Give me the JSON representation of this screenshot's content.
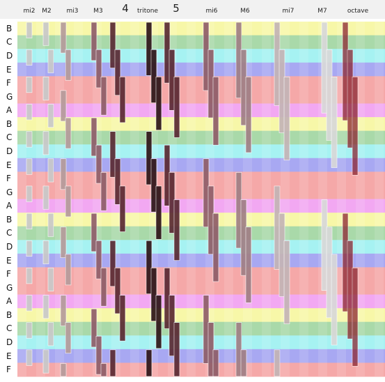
{
  "interval_headers": [
    {
      "label": "mi2",
      "size": "small"
    },
    {
      "label": "M2",
      "size": "small"
    },
    {
      "label": "mi3",
      "size": "small"
    },
    {
      "label": "M3",
      "size": "small"
    },
    {
      "label": "4",
      "size": "big"
    },
    {
      "label": "tritone",
      "size": "small"
    },
    {
      "label": "5",
      "size": "big"
    },
    {
      "label": "mi6",
      "size": "small"
    },
    {
      "label": "M6",
      "size": "small"
    },
    {
      "label": "mi7",
      "size": "small"
    },
    {
      "label": "M7",
      "size": "small"
    },
    {
      "label": "octave",
      "size": "small"
    }
  ],
  "note_labels": [
    "B",
    "C",
    "D",
    "E",
    "F",
    "G",
    "A",
    "B",
    "C",
    "D",
    "E",
    "F",
    "G",
    "A",
    "B",
    "C",
    "D",
    "E",
    "F",
    "G",
    "A",
    "B",
    "C",
    "D",
    "E",
    "F"
  ],
  "note_colors": {
    "B": "#f7f7a8",
    "C": "#a9d9a9",
    "D": "#a6f2f2",
    "E": "#a8a8f2",
    "F": "#f5a8a8",
    "G": "#f5a8a8",
    "A": "#f2a8f2"
  },
  "interval_bar_colors": [
    "#c9c9c9",
    "#c9c9c9",
    "#b59b9b",
    "#8f5e69",
    "#5a2a33",
    "#2e1518",
    "#5a2a33",
    "#8f5e69",
    "#a07f85",
    "#c4b4b6",
    "#d8d8d8",
    "#8b2530"
  ]
}
